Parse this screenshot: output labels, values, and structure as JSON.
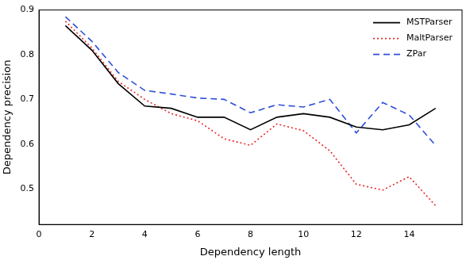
{
  "chart_data": {
    "type": "line",
    "x_label": "Dependency length",
    "y_label": "Dependency precision",
    "x": [
      1,
      2,
      3,
      4,
      5,
      6,
      7,
      8,
      9,
      10,
      11,
      12,
      13,
      14,
      15
    ],
    "series": [
      {
        "name": "MSTParser",
        "color": "#000000",
        "line_style": "solid",
        "values": [
          0.865,
          0.81,
          0.735,
          0.685,
          0.68,
          0.66,
          0.66,
          0.632,
          0.66,
          0.668,
          0.66,
          0.638,
          0.632,
          0.643,
          0.68
        ]
      },
      {
        "name": "MaltParser",
        "color": "#e8262a",
        "line_style": "dotted",
        "values": [
          0.875,
          0.815,
          0.74,
          0.7,
          0.668,
          0.652,
          0.612,
          0.597,
          0.645,
          0.63,
          0.585,
          0.51,
          0.497,
          0.527,
          0.462
        ]
      },
      {
        "name": "ZPar",
        "color": "#2f4fd8",
        "line_style": "dashed",
        "values": [
          0.885,
          0.83,
          0.76,
          0.72,
          0.712,
          0.703,
          0.7,
          0.67,
          0.688,
          0.683,
          0.7,
          0.625,
          0.693,
          0.665,
          0.597
        ]
      }
    ],
    "xlim": [
      0,
      16
    ],
    "xticks": [
      0,
      2,
      4,
      6,
      8,
      10,
      12,
      14
    ],
    "ylim": [
      0.42,
      0.9
    ],
    "yticks": [
      0.5,
      0.6,
      0.7,
      0.8,
      0.9
    ],
    "grid": false,
    "legend": "upper right"
  }
}
